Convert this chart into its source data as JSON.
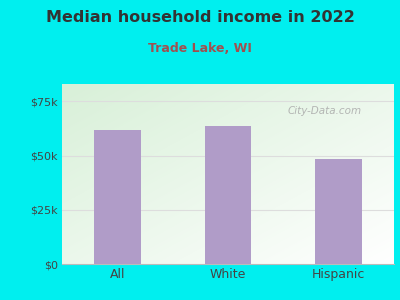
{
  "title": "Median household income in 2022",
  "subtitle": "Trade Lake, WI",
  "categories": [
    "All",
    "White",
    "Hispanic"
  ],
  "values": [
    62000,
    63500,
    48500
  ],
  "bar_color": "#b09cc8",
  "title_color": "#333333",
  "subtitle_color": "#a05050",
  "yticks": [
    0,
    25000,
    50000,
    75000
  ],
  "ytick_labels": [
    "$0",
    "$25k",
    "$50k",
    "$75k"
  ],
  "ylim": [
    0,
    83000
  ],
  "background_outer": "#00efef",
  "background_inner_topleft": "#d8f0d8",
  "background_inner_bottomright": "#ffffff",
  "watermark": "City-Data.com",
  "grid_color": "#dddddd",
  "tick_color": "#444444"
}
